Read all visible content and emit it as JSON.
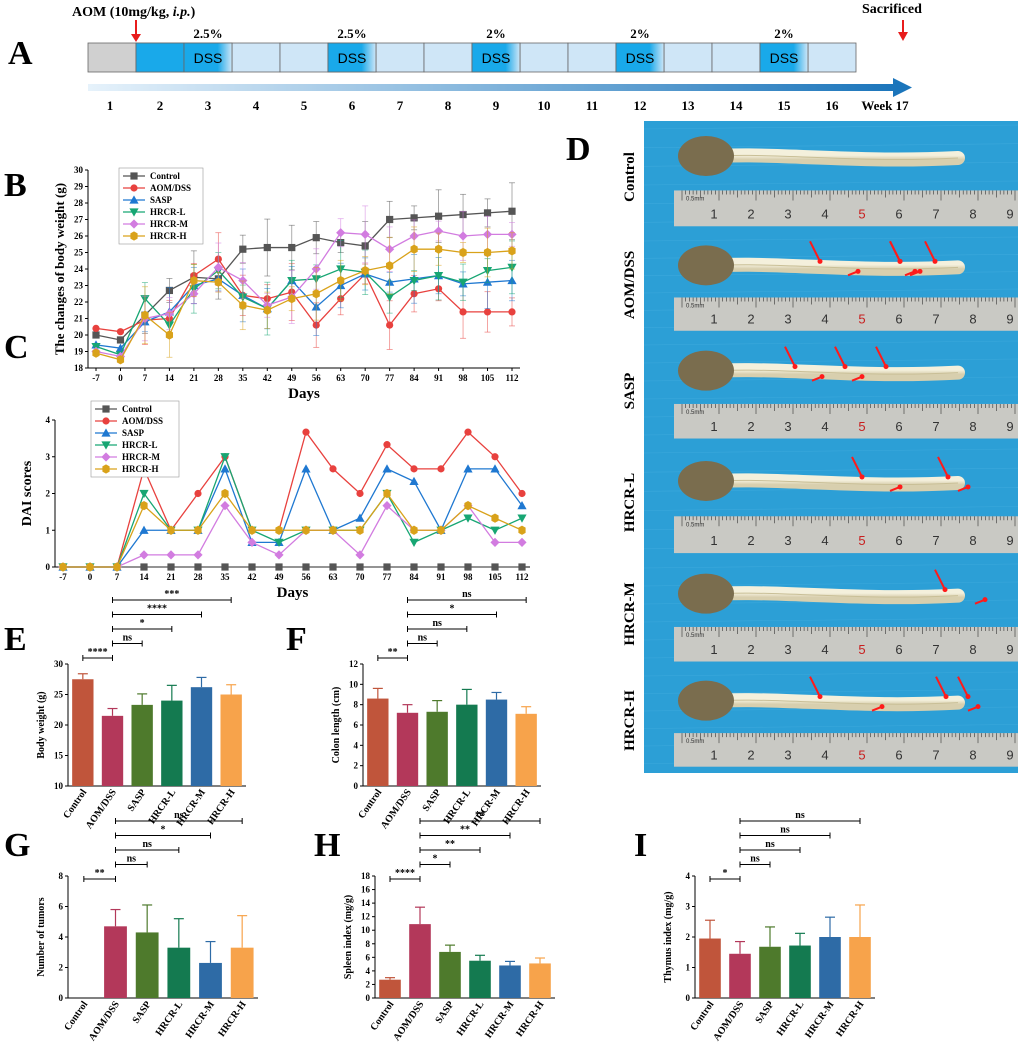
{
  "panels": {
    "A": "A",
    "B": "B",
    "C": "C",
    "D": "D",
    "E": "E",
    "F": "F",
    "G": "G",
    "H": "H",
    "I": "I"
  },
  "timeline": {
    "aom_label": "AOM (10mg/kg, ",
    "aom_italic": "i.p.",
    "aom_close": ")",
    "sacrificed": "Sacrificed",
    "weeks": [
      "1",
      "2",
      "3",
      "4",
      "5",
      "6",
      "7",
      "8",
      "9",
      "10",
      "11",
      "12",
      "13",
      "14",
      "15",
      "16",
      "Week 17"
    ],
    "dss_label": "DSS",
    "dss_blocks": [
      {
        "week": 3,
        "conc": "2.5%"
      },
      {
        "week": 6,
        "conc": "2.5%"
      },
      {
        "week": 9,
        "conc": "2%"
      },
      {
        "week": 12,
        "conc": "2%"
      },
      {
        "week": 15,
        "conc": "2%"
      }
    ],
    "colors": {
      "gray": "#d0d0d0",
      "light": "#cfe6f7",
      "dss": "#19a9ea",
      "arrow": "#1b75bb",
      "red": "#e81c1c"
    }
  },
  "series_colors": {
    "Control": "#555555",
    "AOM/DSS": "#e8413e",
    "SASP": "#1f78d1",
    "HRCR-L": "#17a673",
    "HRCR-M": "#d27ce0",
    "HRCR-H": "#d9a21a"
  },
  "line_charts": [
    {
      "id": "B",
      "type": "line",
      "ylabel": "The changes of body weight (g)",
      "xlabel": "Days",
      "ylim": [
        18,
        30
      ],
      "yticks": [
        "18",
        "19",
        "20",
        "21",
        "22",
        "23",
        "24",
        "25",
        "26",
        "27",
        "28",
        "29",
        "30"
      ],
      "categories": [
        "-7",
        "0",
        "7",
        "14",
        "21",
        "28",
        "35",
        "42",
        "49",
        "56",
        "63",
        "70",
        "77",
        "84",
        "91",
        "98",
        "105",
        "112"
      ],
      "legend": [
        "Control",
        "AOM/DSS",
        "SASP",
        "HRCR-L",
        "HRCR-M",
        "HRCR-H"
      ],
      "series": [
        {
          "name": "Control",
          "marker": "square",
          "values": [
            20.0,
            19.7,
            21.2,
            22.7,
            23.5,
            23.4,
            25.2,
            25.3,
            25.3,
            25.9,
            25.6,
            25.4,
            27.0,
            27.1,
            27.2,
            27.3,
            27.4,
            27.5
          ]
        },
        {
          "name": "AOM/DSS",
          "marker": "circle",
          "values": [
            20.4,
            20.2,
            20.9,
            21.0,
            23.6,
            24.6,
            22.4,
            22.2,
            22.6,
            20.6,
            22.2,
            23.7,
            20.6,
            22.5,
            22.8,
            21.4,
            21.4,
            21.4
          ]
        },
        {
          "name": "SASP",
          "marker": "triangle",
          "values": [
            19.4,
            19.2,
            20.8,
            21.4,
            23.0,
            23.4,
            22.4,
            21.6,
            23.3,
            21.7,
            23.0,
            23.7,
            23.2,
            23.4,
            23.6,
            23.1,
            23.2,
            23.3
          ]
        },
        {
          "name": "HRCR-L",
          "marker": "tri-down",
          "values": [
            19.3,
            18.8,
            22.2,
            20.6,
            22.8,
            23.9,
            22.3,
            21.6,
            23.3,
            23.4,
            24.0,
            23.8,
            22.3,
            23.3,
            23.6,
            23.2,
            23.9,
            24.1
          ]
        },
        {
          "name": "HRCR-M",
          "marker": "diamond",
          "values": [
            19.0,
            18.7,
            21.0,
            21.3,
            22.5,
            24.1,
            23.3,
            21.8,
            22.3,
            24.0,
            26.2,
            26.1,
            25.2,
            26.0,
            26.3,
            26.0,
            26.1,
            26.1
          ]
        },
        {
          "name": "HRCR-H",
          "marker": "hex",
          "values": [
            18.9,
            18.5,
            21.2,
            20.0,
            23.3,
            23.2,
            21.8,
            21.5,
            22.2,
            22.5,
            23.3,
            23.9,
            24.2,
            25.2,
            25.2,
            25.0,
            25.0,
            25.1
          ]
        }
      ]
    },
    {
      "id": "C",
      "type": "line",
      "ylabel": "DAI scores",
      "xlabel": "Days",
      "ylim": [
        0,
        4
      ],
      "yticks": [
        "0",
        "1",
        "2",
        "3",
        "4"
      ],
      "categories": [
        "-7",
        "0",
        "7",
        "14",
        "21",
        "28",
        "35",
        "42",
        "49",
        "56",
        "63",
        "70",
        "77",
        "84",
        "91",
        "98",
        "105",
        "112"
      ],
      "legend": [
        "Control",
        "AOM/DSS",
        "SASP",
        "HRCR-L",
        "HRCR-M",
        "HRCR-H"
      ],
      "series": [
        {
          "name": "Control",
          "marker": "square",
          "values": [
            0,
            0,
            0,
            0,
            0,
            0,
            0,
            0,
            0,
            0,
            0,
            0,
            0,
            0,
            0,
            0,
            0,
            0
          ]
        },
        {
          "name": "AOM/DSS",
          "marker": "circle",
          "values": [
            0,
            0,
            0,
            2.67,
            1.0,
            2.0,
            3.0,
            1.0,
            1.0,
            3.67,
            2.67,
            2.0,
            3.33,
            2.67,
            2.67,
            3.67,
            3.0,
            2.0
          ]
        },
        {
          "name": "SASP",
          "marker": "triangle",
          "values": [
            0,
            0,
            0,
            1.0,
            1.0,
            1.0,
            2.67,
            0.67,
            0.67,
            2.67,
            1.0,
            1.33,
            2.67,
            2.33,
            1.0,
            2.67,
            2.67,
            1.67
          ]
        },
        {
          "name": "HRCR-L",
          "marker": "tri-down",
          "values": [
            0,
            0,
            0,
            2.0,
            1.0,
            1.0,
            3.0,
            1.0,
            0.67,
            1.0,
            1.0,
            1.0,
            2.0,
            0.67,
            1.0,
            1.33,
            1.0,
            1.33
          ]
        },
        {
          "name": "HRCR-M",
          "marker": "diamond",
          "values": [
            0,
            0,
            0,
            0.33,
            0.33,
            0.33,
            1.67,
            0.67,
            0.33,
            1.0,
            1.0,
            0.33,
            1.67,
            1.0,
            1.0,
            1.67,
            0.67,
            0.67
          ]
        },
        {
          "name": "HRCR-H",
          "marker": "hex",
          "values": [
            0,
            0,
            0,
            1.67,
            1.0,
            1.0,
            2.0,
            1.0,
            1.0,
            1.0,
            1.0,
            1.0,
            2.0,
            1.0,
            1.0,
            1.67,
            1.33,
            1.0
          ]
        }
      ]
    }
  ],
  "bar_charts": [
    {
      "id": "E",
      "type": "bar",
      "ylabel": "Body weight (g)",
      "ylim": [
        10,
        30
      ],
      "yticks": [
        "10",
        "15",
        "20",
        "25",
        "30"
      ],
      "categories": [
        "Control",
        "AOM/DSS",
        "SASP",
        "HRCR-L",
        "HRCR-M",
        "HRCR-H"
      ],
      "values": [
        27.5,
        21.5,
        23.3,
        24.0,
        26.2,
        25.0
      ],
      "errors": [
        0.9,
        1.2,
        1.8,
        2.5,
        1.6,
        1.6
      ],
      "sig": [
        [
          "0",
          "1",
          "****"
        ],
        [
          "1",
          "2",
          "ns"
        ],
        [
          "1",
          "3",
          "*"
        ],
        [
          "1",
          "4",
          "****"
        ],
        [
          "1",
          "5",
          "***"
        ]
      ]
    },
    {
      "id": "F",
      "type": "bar",
      "ylabel": "Colon length (cm)",
      "ylim": [
        0,
        12
      ],
      "yticks": [
        "0",
        "2",
        "4",
        "6",
        "8",
        "10",
        "12"
      ],
      "categories": [
        "Control",
        "AOM/DSS",
        "SASP",
        "HRCR-L",
        "HRCR-M",
        "HRCR-H"
      ],
      "values": [
        8.6,
        7.2,
        7.3,
        8.0,
        8.5,
        7.1
      ],
      "errors": [
        1.0,
        0.8,
        1.1,
        1.5,
        0.7,
        0.7
      ],
      "sig": [
        [
          "0",
          "1",
          "**"
        ],
        [
          "1",
          "2",
          "ns"
        ],
        [
          "1",
          "3",
          "ns"
        ],
        [
          "1",
          "4",
          "*"
        ],
        [
          "1",
          "5",
          "ns"
        ]
      ]
    },
    {
      "id": "G",
      "type": "bar",
      "ylabel": "Number of tumors",
      "ylim": [
        0,
        8
      ],
      "yticks": [
        "0",
        "2",
        "4",
        "6",
        "8"
      ],
      "categories": [
        "Control",
        "AOM/DSS",
        "SASP",
        "HRCR-L",
        "HRCR-M",
        "HRCR-H"
      ],
      "values": [
        0,
        4.7,
        4.3,
        3.3,
        2.3,
        3.3
      ],
      "errors": [
        0,
        1.1,
        1.8,
        1.9,
        1.4,
        2.1
      ],
      "sig": [
        [
          "0",
          "1",
          "**"
        ],
        [
          "1",
          "2",
          "ns"
        ],
        [
          "1",
          "3",
          "ns"
        ],
        [
          "1",
          "4",
          "*"
        ],
        [
          "1",
          "5",
          "ns"
        ]
      ]
    },
    {
      "id": "H",
      "type": "bar",
      "ylabel": "Spleen index (mg/g)",
      "ylim": [
        0,
        18
      ],
      "yticks": [
        "0",
        "2",
        "4",
        "6",
        "8",
        "10",
        "12",
        "14",
        "16",
        "18"
      ],
      "categories": [
        "Control",
        "AOM/DSS",
        "SASP",
        "HRCR-L",
        "HRCR-M",
        "HRCR-H"
      ],
      "values": [
        2.7,
        10.9,
        6.8,
        5.5,
        4.8,
        5.1
      ],
      "errors": [
        0.3,
        2.5,
        1.0,
        0.8,
        0.6,
        0.8
      ],
      "sig": [
        [
          "0",
          "1",
          "****"
        ],
        [
          "1",
          "2",
          "*"
        ],
        [
          "1",
          "3",
          "**"
        ],
        [
          "1",
          "4",
          "**"
        ],
        [
          "1",
          "5",
          "**"
        ]
      ]
    },
    {
      "id": "I",
      "type": "bar",
      "ylabel": "Thymus index (mg/g)",
      "ylim": [
        0,
        4
      ],
      "yticks": [
        "0",
        "1",
        "2",
        "3",
        "4"
      ],
      "categories": [
        "Control",
        "AOM/DSS",
        "SASP",
        "HRCR-L",
        "HRCR-M",
        "HRCR-H"
      ],
      "values": [
        1.95,
        1.45,
        1.68,
        1.72,
        2.0,
        2.0
      ],
      "errors": [
        0.6,
        0.4,
        0.65,
        0.4,
        0.65,
        1.05
      ],
      "sig": [
        [
          "0",
          "1",
          "*"
        ],
        [
          "1",
          "2",
          "ns"
        ],
        [
          "1",
          "3",
          "ns"
        ],
        [
          "1",
          "4",
          "ns"
        ],
        [
          "1",
          "5",
          "ns"
        ]
      ]
    }
  ],
  "bar_colors": [
    "#c0553b",
    "#b3385a",
    "#4e7a2c",
    "#147a50",
    "#2e6ba6",
    "#f7a34b"
  ],
  "photo": {
    "rows": [
      "Control",
      "AOM/DSS",
      "SASP",
      "HRCR-L",
      "HRCR-M",
      "HRCR-H"
    ],
    "ruler_label": "0.5mm",
    "ruler_numbers": [
      "1",
      "2",
      "3",
      "4",
      "5",
      "6",
      "7",
      "8",
      "9"
    ],
    "tumor_counts": [
      0,
      7,
      5,
      4,
      2,
      5
    ],
    "colors": {
      "background": "#2c9fd6",
      "tissue": "#e9e3c8",
      "stool": "#7a6d4e",
      "ruler": "#c9c9c4",
      "arrow": "#ff1a1a"
    }
  }
}
